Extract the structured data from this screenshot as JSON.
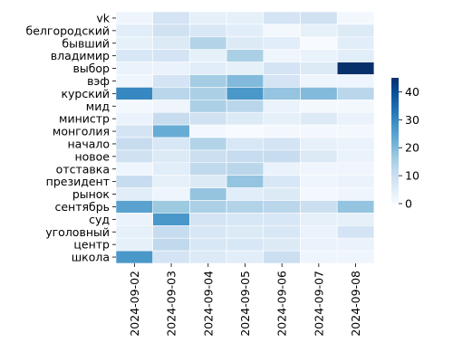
{
  "chart_data": {
    "type": "heatmap",
    "title": "",
    "xlabel": "",
    "ylabel": "",
    "x_categories": [
      "2024-09-02",
      "2024-09-03",
      "2024-09-04",
      "2024-09-05",
      "2024-09-06",
      "2024-09-07",
      "2024-09-08"
    ],
    "y_categories": [
      "vk",
      "белгородский",
      "бывший",
      "владимир",
      "выбор",
      "вэф",
      "курский",
      "мид",
      "министр",
      "монголия",
      "начало",
      "новое",
      "отставка",
      "президент",
      "рынок",
      "сентябрь",
      "суд",
      "уголовный",
      "центр",
      "школа"
    ],
    "values": [
      [
        2,
        8,
        4,
        4,
        8,
        9,
        1
      ],
      [
        5,
        9,
        7,
        5,
        1,
        4,
        6
      ],
      [
        4,
        6,
        14,
        6,
        5,
        0,
        5
      ],
      [
        7,
        8,
        4,
        15,
        2,
        3,
        5
      ],
      [
        3,
        3,
        5,
        4,
        8,
        6,
        45
      ],
      [
        2,
        8,
        16,
        20,
        8,
        2,
        2
      ],
      [
        30,
        13,
        15,
        27,
        18,
        20,
        13
      ],
      [
        1,
        2,
        15,
        13,
        3,
        1,
        1
      ],
      [
        3,
        11,
        9,
        6,
        4,
        6,
        3
      ],
      [
        8,
        23,
        1,
        0,
        1,
        1,
        1
      ],
      [
        11,
        7,
        14,
        7,
        8,
        4,
        3
      ],
      [
        9,
        6,
        10,
        11,
        11,
        6,
        3
      ],
      [
        2,
        5,
        12,
        13,
        3,
        2,
        2
      ],
      [
        11,
        4,
        6,
        18,
        7,
        2,
        3
      ],
      [
        5,
        2,
        18,
        5,
        6,
        1,
        2
      ],
      [
        25,
        17,
        15,
        14,
        13,
        10,
        18
      ],
      [
        3,
        27,
        8,
        7,
        7,
        4,
        4
      ],
      [
        4,
        11,
        7,
        6,
        7,
        3,
        8
      ],
      [
        4,
        12,
        7,
        7,
        6,
        3,
        3
      ],
      [
        27,
        8,
        6,
        5,
        10,
        2,
        2
      ]
    ],
    "vmin": 0,
    "vmax": 45,
    "colormap": "Blues",
    "colorbar_ticks": [
      0,
      10,
      20,
      30,
      40
    ],
    "grid_lines": "white",
    "legend": "colorbar-right"
  }
}
